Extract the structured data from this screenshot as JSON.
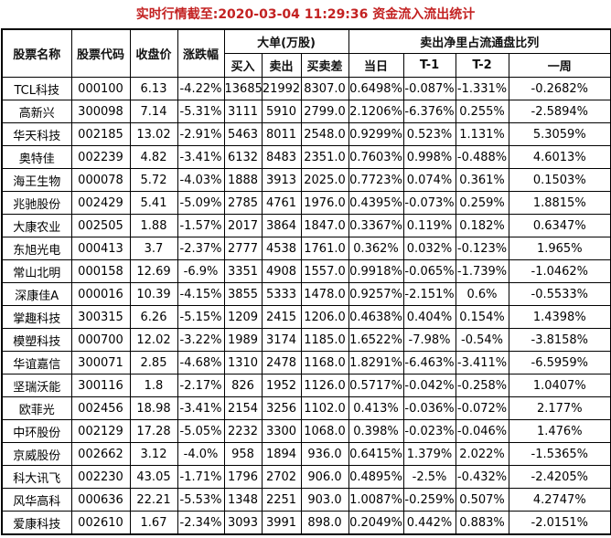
{
  "title": "实时行情截至:2020-03-04 11:29:36 资金流入流出统计",
  "colors": {
    "title_red": "#c32222",
    "stock_link_blue": "#1565a5",
    "border": "#000000",
    "text": "#000000",
    "background": "#ffffff"
  },
  "table": {
    "headers": {
      "name": "股票名称",
      "code": "股票代码",
      "close": "收盘价",
      "change": "涨跌幅",
      "big_orders_group": "大单(万股)",
      "buy": "买入",
      "sell": "卖出",
      "diff": "买卖差",
      "ratio_group": "卖出净里占流通盘比列",
      "day": "当日",
      "t1": "T-1",
      "t2": "T-2",
      "week": "一周"
    },
    "rows": [
      [
        "TCL科技",
        "000100",
        "6.13",
        "-4.22%",
        "13685",
        "21992",
        "8307.0",
        "0.6498%",
        "-0.087%",
        "-1.331%",
        "-0.2682%"
      ],
      [
        "高新兴",
        "300098",
        "7.14",
        "-5.31%",
        "3111",
        "5910",
        "2799.0",
        "2.1206%",
        "-6.376%",
        "0.255%",
        "-2.5894%"
      ],
      [
        "华天科技",
        "002185",
        "13.02",
        "-2.91%",
        "5463",
        "8011",
        "2548.0",
        "0.9299%",
        "0.523%",
        "1.131%",
        "5.3059%"
      ],
      [
        "奥特佳",
        "002239",
        "4.82",
        "-3.41%",
        "6132",
        "8483",
        "2351.0",
        "0.7603%",
        "0.998%",
        "-0.488%",
        "4.6013%"
      ],
      [
        "海王生物",
        "000078",
        "5.72",
        "-4.03%",
        "1888",
        "3913",
        "2025.0",
        "0.7723%",
        "0.074%",
        "0.361%",
        "0.1503%"
      ],
      [
        "兆驰股份",
        "002429",
        "5.41",
        "-5.09%",
        "2785",
        "4761",
        "1976.0",
        "0.4395%",
        "-0.073%",
        "0.259%",
        "1.8815%"
      ],
      [
        "大康农业",
        "002505",
        "1.88",
        "-1.57%",
        "2017",
        "3864",
        "1847.0",
        "0.3367%",
        "0.119%",
        "0.182%",
        "0.6347%"
      ],
      [
        "东旭光电",
        "000413",
        "3.7",
        "-2.37%",
        "2777",
        "4538",
        "1761.0",
        "0.362%",
        "0.032%",
        "-0.123%",
        "1.965%"
      ],
      [
        "常山北明",
        "000158",
        "12.69",
        "-6.9%",
        "3351",
        "4908",
        "1557.0",
        "0.9918%",
        "-0.065%",
        "-1.739%",
        "-1.0462%"
      ],
      [
        "深康佳A",
        "000016",
        "10.39",
        "-4.15%",
        "3855",
        "5333",
        "1478.0",
        "0.9257%",
        "-2.151%",
        "0.6%",
        "-0.5533%"
      ],
      [
        "掌趣科技",
        "300315",
        "6.26",
        "-5.15%",
        "1209",
        "2415",
        "1206.0",
        "0.4638%",
        "0.404%",
        "0.154%",
        "1.4398%"
      ],
      [
        "模塑科技",
        "000700",
        "12.02",
        "-3.22%",
        "1989",
        "3174",
        "1185.0",
        "1.6522%",
        "-7.98%",
        "-0.54%",
        "-3.8158%"
      ],
      [
        "华谊嘉信",
        "300071",
        "2.85",
        "-4.68%",
        "1310",
        "2478",
        "1168.0",
        "1.8291%",
        "-6.463%",
        "-3.411%",
        "-6.5959%"
      ],
      [
        "坚瑞沃能",
        "300116",
        "1.8",
        "-2.17%",
        "826",
        "1952",
        "1126.0",
        "0.5717%",
        "-0.042%",
        "-0.258%",
        "1.0407%"
      ],
      [
        "欧菲光",
        "002456",
        "18.98",
        "-3.41%",
        "2154",
        "3256",
        "1102.0",
        "0.413%",
        "-0.036%",
        "-0.072%",
        "2.177%"
      ],
      [
        "中环股份",
        "002129",
        "17.28",
        "-5.05%",
        "2232",
        "3300",
        "1068.0",
        "0.398%",
        "-0.023%",
        "-0.046%",
        "1.476%"
      ],
      [
        "京威股份",
        "002662",
        "3.12",
        "-4.0%",
        "958",
        "1894",
        "936.0",
        "0.6415%",
        "1.379%",
        "2.022%",
        "-1.5365%"
      ],
      [
        "科大讯飞",
        "002230",
        "43.05",
        "-1.71%",
        "1796",
        "2702",
        "906.0",
        "0.4895%",
        "-2.5%",
        "-0.432%",
        "-2.4205%"
      ],
      [
        "风华高科",
        "000636",
        "22.21",
        "-5.53%",
        "1348",
        "2251",
        "903.0",
        "1.0087%",
        "-0.259%",
        "0.507%",
        "4.2747%"
      ],
      [
        "爱康科技",
        "002610",
        "1.67",
        "-2.34%",
        "3093",
        "3991",
        "898.0",
        "0.2049%",
        "0.442%",
        "0.883%",
        "-2.0151%"
      ]
    ]
  }
}
